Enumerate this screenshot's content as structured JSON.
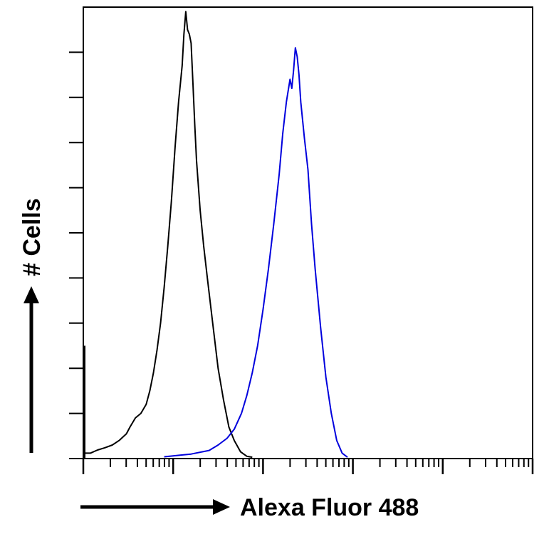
{
  "chart_data": {
    "type": "line",
    "title": "",
    "xlabel": "Alexa Fluor 488",
    "ylabel": "# Cells",
    "x_scale": "log",
    "xlim": [
      1,
      100000
    ],
    "ylim": [
      0,
      1
    ],
    "grid": false,
    "legend": "none",
    "y_minor_tick_count": 9,
    "series": [
      {
        "color": "#000000",
        "points": [
          [
            1.0,
            0.012
          ],
          [
            1.2,
            0.012
          ],
          [
            1.44,
            0.019
          ],
          [
            1.74,
            0.024
          ],
          [
            2.1,
            0.03
          ],
          [
            2.51,
            0.04
          ],
          [
            3.02,
            0.055
          ],
          [
            3.31,
            0.07
          ],
          [
            3.8,
            0.09
          ],
          [
            4.37,
            0.1
          ],
          [
            5.01,
            0.12
          ],
          [
            5.5,
            0.15
          ],
          [
            6.03,
            0.19
          ],
          [
            6.61,
            0.24
          ],
          [
            7.24,
            0.3
          ],
          [
            7.94,
            0.38
          ],
          [
            8.71,
            0.47
          ],
          [
            9.55,
            0.57
          ],
          [
            10.5,
            0.69
          ],
          [
            11.48,
            0.79
          ],
          [
            12.59,
            0.87
          ],
          [
            13.18,
            0.94
          ],
          [
            13.8,
            0.99
          ],
          [
            14.45,
            0.95
          ],
          [
            15.14,
            0.94
          ],
          [
            15.85,
            0.92
          ],
          [
            16.6,
            0.83
          ],
          [
            17.38,
            0.74
          ],
          [
            18.2,
            0.66
          ],
          [
            19.95,
            0.55
          ],
          [
            21.88,
            0.47
          ],
          [
            24.0,
            0.4
          ],
          [
            27.54,
            0.3
          ],
          [
            31.62,
            0.2
          ],
          [
            36.31,
            0.13
          ],
          [
            41.69,
            0.07
          ],
          [
            47.86,
            0.04
          ],
          [
            56.23,
            0.015
          ],
          [
            66.07,
            0.005
          ],
          [
            75.86,
            0.003
          ]
        ]
      },
      {
        "color": "#0000dd",
        "points": [
          [
            7.94,
            0.004
          ],
          [
            10.0,
            0.006
          ],
          [
            15.85,
            0.01
          ],
          [
            25.12,
            0.018
          ],
          [
            31.62,
            0.03
          ],
          [
            39.81,
            0.045
          ],
          [
            47.86,
            0.065
          ],
          [
            57.54,
            0.1
          ],
          [
            66.07,
            0.14
          ],
          [
            75.86,
            0.19
          ],
          [
            87.1,
            0.25
          ],
          [
            100.0,
            0.33
          ],
          [
            114.8,
            0.42
          ],
          [
            131.8,
            0.52
          ],
          [
            151.4,
            0.63
          ],
          [
            165.9,
            0.72
          ],
          [
            182.0,
            0.79
          ],
          [
            199.5,
            0.84
          ],
          [
            208.9,
            0.82
          ],
          [
            218.8,
            0.86
          ],
          [
            229.1,
            0.91
          ],
          [
            239.9,
            0.89
          ],
          [
            251.2,
            0.85
          ],
          [
            263.0,
            0.79
          ],
          [
            288.4,
            0.71
          ],
          [
            316.2,
            0.64
          ],
          [
            346.7,
            0.52
          ],
          [
            380.2,
            0.42
          ],
          [
            437.5,
            0.29
          ],
          [
            501.2,
            0.18
          ],
          [
            575.4,
            0.1
          ],
          [
            660.7,
            0.04
          ],
          [
            758.6,
            0.012
          ],
          [
            871.0,
            0.003
          ]
        ]
      }
    ]
  }
}
